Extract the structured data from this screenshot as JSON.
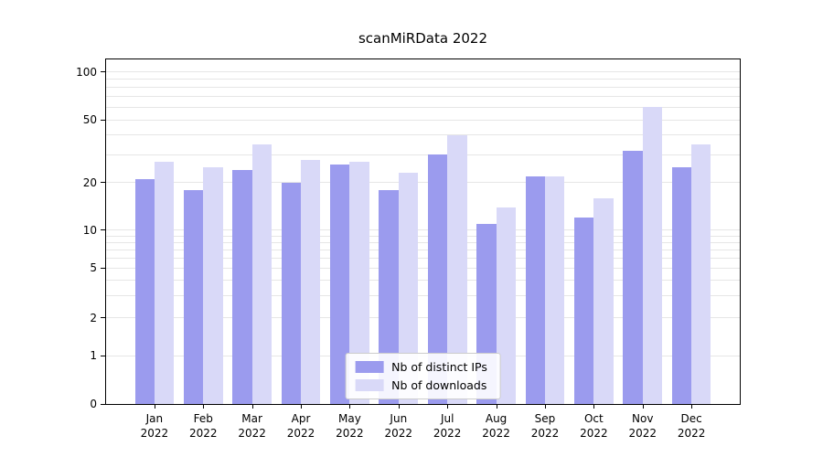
{
  "title": "scanMiRData 2022",
  "chart_data": {
    "type": "bar",
    "title": "scanMiRData 2022",
    "categories": [
      "Jan",
      "Feb",
      "Mar",
      "Apr",
      "May",
      "Jun",
      "Jul",
      "Aug",
      "Sep",
      "Oct",
      "Nov",
      "Dec"
    ],
    "category_year": "2022",
    "series": [
      {
        "name": "Nb of distinct IPs",
        "color": "#9b9bee",
        "values": [
          21,
          18,
          24,
          20,
          26,
          18,
          30,
          11,
          22,
          12,
          32,
          25
        ]
      },
      {
        "name": "Nb of downloads",
        "color": "#d9d9f8",
        "values": [
          27,
          25,
          35,
          28,
          27,
          23,
          40,
          14,
          22,
          16,
          60,
          35
        ]
      }
    ],
    "xlabel": "",
    "ylabel": "",
    "yscale": "symlog",
    "yticks": [
      0,
      1,
      2,
      5,
      10,
      20,
      50,
      100
    ],
    "ylim": [
      0,
      130
    ],
    "grid": true,
    "gridline_values": [
      1,
      2,
      3,
      4,
      5,
      6,
      7,
      8,
      9,
      10,
      20,
      30,
      40,
      50,
      60,
      70,
      80,
      90,
      100
    ],
    "legend_position": "lower center"
  }
}
